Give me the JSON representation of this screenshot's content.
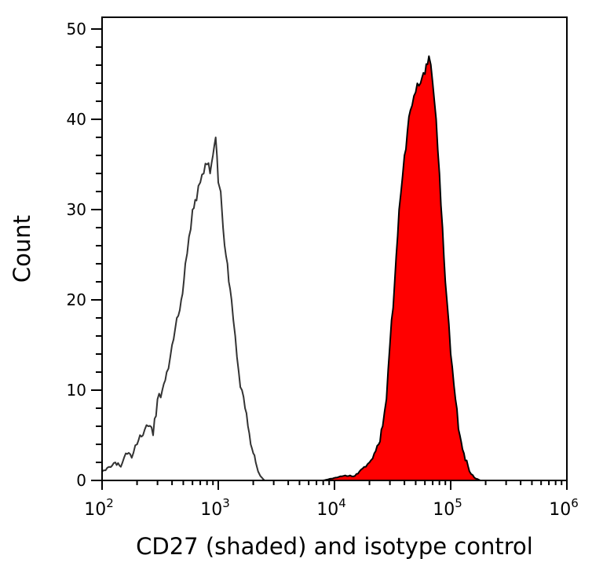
{
  "chart_data": {
    "type": "area",
    "title": "",
    "xlabel": "CD27 (shaded) and isotype control",
    "ylabel": "Count",
    "xscale": "log",
    "xlim": [
      100,
      1000000
    ],
    "ylim": [
      0,
      51.3
    ],
    "grid": false,
    "legend": "none",
    "x_ticks": [
      {
        "base": "10",
        "exp": "2",
        "value": 100
      },
      {
        "base": "10",
        "exp": "3",
        "value": 1000
      },
      {
        "base": "10",
        "exp": "4",
        "value": 10000
      },
      {
        "base": "10",
        "exp": "5",
        "value": 100000
      },
      {
        "base": "10",
        "exp": "6",
        "value": 1000000
      }
    ],
    "y_ticks": [
      "0",
      "10",
      "20",
      "30",
      "40",
      "50"
    ],
    "series": [
      {
        "id": "isotype",
        "fill": "none",
        "color": "#333333",
        "x": [
          100,
          115,
          130,
          145,
          160,
          180,
          200,
          225,
          250,
          275,
          300,
          330,
          360,
          400,
          440,
          480,
          520,
          560,
          600,
          650,
          700,
          750,
          800,
          850,
          900,
          950,
          1000,
          1050,
          1100,
          1200,
          1300,
          1400,
          1500,
          1600,
          1700,
          1800,
          1900,
          2000,
          2100,
          2200,
          2300,
          2500
        ],
        "y": [
          1,
          1.5,
          2,
          1.5,
          3,
          2.5,
          4,
          5,
          6,
          5,
          9,
          10,
          12,
          15,
          18,
          20,
          24,
          27,
          30,
          31,
          33,
          34,
          35,
          34,
          36,
          38,
          33,
          32,
          28,
          24,
          20,
          16,
          12,
          10,
          8,
          6,
          4,
          3,
          2,
          1,
          0.5,
          0
        ]
      },
      {
        "id": "cd27",
        "fill": "#ff0000",
        "color": "#000000",
        "x": [
          4000,
          8000,
          12000,
          15000,
          18000,
          20000,
          22000,
          24000,
          26000,
          28000,
          30000,
          33000,
          36000,
          40000,
          45000,
          50000,
          55000,
          60000,
          65000,
          70000,
          75000,
          80000,
          85000,
          90000,
          100000,
          110000,
          120000,
          130000,
          145000,
          160000,
          180000,
          220000
        ],
        "y": [
          0,
          0,
          0.5,
          0.5,
          1.5,
          2,
          3,
          4,
          6,
          9,
          15,
          22,
          30,
          36,
          41,
          43,
          44,
          45,
          47,
          44,
          40,
          34,
          28,
          22,
          14,
          9,
          5,
          3,
          1,
          0.3,
          0,
          0
        ]
      }
    ]
  }
}
